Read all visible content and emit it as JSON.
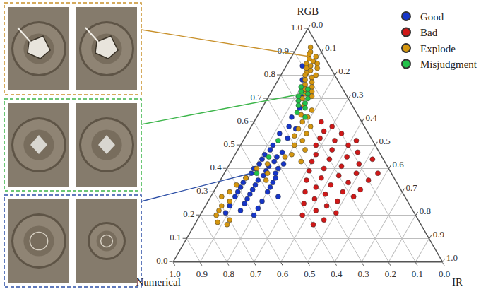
{
  "chart_data": {
    "type": "ternary",
    "grid": true,
    "legend": "top-right",
    "axes": [
      {
        "title": "RGB",
        "lim": [
          0,
          1
        ],
        "ticks": [
          {
            "value": 0,
            "label": "0.0"
          },
          0.1,
          0.2,
          0.3,
          0.4,
          0.5,
          0.6,
          0.7,
          0.8,
          0.9,
          {
            "value": 1,
            "label": "1.0"
          }
        ]
      },
      {
        "title": "Numerical",
        "lim": [
          0,
          1
        ],
        "ticks": [
          {
            "value": 0,
            "label": "0.0"
          },
          0.1,
          0.2,
          0.3,
          0.4,
          0.5,
          0.6,
          0.7,
          0.8,
          0.9,
          {
            "value": 1,
            "label": "1.0"
          }
        ]
      },
      {
        "title": "IR",
        "lim": [
          0,
          1
        ],
        "ticks": [
          {
            "value": 0,
            "label": "0.0"
          },
          0.1,
          0.2,
          0.3,
          0.4,
          0.5,
          0.6,
          0.7,
          0.8,
          0.9,
          {
            "value": 1,
            "label": "1.0"
          }
        ]
      }
    ],
    "series": [
      {
        "name": "Good",
        "color": "#1535c8",
        "values": [
          [
            0.5,
            0.38,
            0.12
          ],
          [
            0.48,
            0.4,
            0.12
          ],
          [
            0.47,
            0.36,
            0.17
          ],
          [
            0.46,
            0.43,
            0.11
          ],
          [
            0.45,
            0.39,
            0.16
          ],
          [
            0.44,
            0.45,
            0.11
          ],
          [
            0.43,
            0.41,
            0.16
          ],
          [
            0.42,
            0.47,
            0.11
          ],
          [
            0.42,
            0.38,
            0.2
          ],
          [
            0.41,
            0.44,
            0.15
          ],
          [
            0.4,
            0.5,
            0.1
          ],
          [
            0.4,
            0.41,
            0.19
          ],
          [
            0.39,
            0.46,
            0.15
          ],
          [
            0.38,
            0.52,
            0.1
          ],
          [
            0.38,
            0.43,
            0.19
          ],
          [
            0.37,
            0.48,
            0.15
          ],
          [
            0.36,
            0.55,
            0.09
          ],
          [
            0.36,
            0.44,
            0.2
          ],
          [
            0.35,
            0.51,
            0.14
          ],
          [
            0.34,
            0.57,
            0.09
          ],
          [
            0.34,
            0.46,
            0.2
          ],
          [
            0.33,
            0.53,
            0.14
          ],
          [
            0.32,
            0.59,
            0.09
          ],
          [
            0.32,
            0.48,
            0.2
          ],
          [
            0.31,
            0.55,
            0.14
          ],
          [
            0.3,
            0.61,
            0.09
          ],
          [
            0.3,
            0.5,
            0.2
          ],
          [
            0.29,
            0.57,
            0.14
          ],
          [
            0.28,
            0.63,
            0.09
          ],
          [
            0.28,
            0.47,
            0.25
          ],
          [
            0.27,
            0.59,
            0.14
          ],
          [
            0.26,
            0.54,
            0.2
          ],
          [
            0.25,
            0.61,
            0.14
          ],
          [
            0.24,
            0.67,
            0.09
          ],
          [
            0.23,
            0.57,
            0.2
          ],
          [
            0.22,
            0.64,
            0.14
          ],
          [
            0.21,
            0.7,
            0.09
          ],
          [
            0.2,
            0.6,
            0.2
          ],
          [
            0.55,
            0.33,
            0.12
          ],
          [
            0.58,
            0.28,
            0.14
          ],
          [
            0.62,
            0.25,
            0.13
          ],
          [
            0.66,
            0.2,
            0.14
          ],
          [
            0.72,
            0.16,
            0.12
          ],
          [
            0.78,
            0.13,
            0.09
          ],
          [
            0.84,
            0.1,
            0.06
          ],
          [
            0.53,
            0.31,
            0.16
          ],
          [
            0.57,
            0.26,
            0.17
          ]
        ]
      },
      {
        "name": "Bad",
        "color": "#d01818",
        "values": [
          [
            0.6,
            0.15,
            0.25
          ],
          [
            0.58,
            0.12,
            0.3
          ],
          [
            0.56,
            0.16,
            0.28
          ],
          [
            0.55,
            0.1,
            0.35
          ],
          [
            0.53,
            0.19,
            0.28
          ],
          [
            0.52,
            0.14,
            0.34
          ],
          [
            0.5,
            0.1,
            0.4
          ],
          [
            0.5,
            0.22,
            0.28
          ],
          [
            0.48,
            0.17,
            0.35
          ],
          [
            0.47,
            0.08,
            0.45
          ],
          [
            0.46,
            0.24,
            0.3
          ],
          [
            0.45,
            0.13,
            0.42
          ],
          [
            0.44,
            0.2,
            0.36
          ],
          [
            0.43,
            0.27,
            0.3
          ],
          [
            0.42,
            0.1,
            0.48
          ],
          [
            0.41,
            0.17,
            0.42
          ],
          [
            0.4,
            0.24,
            0.36
          ],
          [
            0.39,
            0.3,
            0.31
          ],
          [
            0.38,
            0.13,
            0.49
          ],
          [
            0.37,
            0.2,
            0.43
          ],
          [
            0.36,
            0.27,
            0.37
          ],
          [
            0.35,
            0.1,
            0.55
          ],
          [
            0.35,
            0.33,
            0.32
          ],
          [
            0.34,
            0.18,
            0.48
          ],
          [
            0.33,
            0.25,
            0.42
          ],
          [
            0.32,
            0.31,
            0.37
          ],
          [
            0.31,
            0.15,
            0.54
          ],
          [
            0.3,
            0.22,
            0.48
          ],
          [
            0.3,
            0.36,
            0.34
          ],
          [
            0.29,
            0.29,
            0.42
          ],
          [
            0.28,
            0.19,
            0.53
          ],
          [
            0.27,
            0.34,
            0.39
          ],
          [
            0.26,
            0.26,
            0.48
          ],
          [
            0.25,
            0.39,
            0.36
          ],
          [
            0.24,
            0.31,
            0.45
          ],
          [
            0.22,
            0.36,
            0.42
          ],
          [
            0.21,
            0.29,
            0.5
          ],
          [
            0.2,
            0.42,
            0.38
          ],
          [
            0.18,
            0.35,
            0.47
          ],
          [
            0.16,
            0.4,
            0.44
          ],
          [
            0.38,
            0.05,
            0.57
          ],
          [
            0.44,
            0.04,
            0.52
          ],
          [
            0.52,
            0.06,
            0.42
          ]
        ]
      },
      {
        "name": "Explode",
        "color": "#d4960f",
        "values": [
          [
            0.92,
            0.03,
            0.05
          ],
          [
            0.9,
            0.04,
            0.06
          ],
          [
            0.89,
            0.05,
            0.06
          ],
          [
            0.88,
            0.03,
            0.09
          ],
          [
            0.87,
            0.06,
            0.07
          ],
          [
            0.86,
            0.05,
            0.09
          ],
          [
            0.85,
            0.08,
            0.07
          ],
          [
            0.85,
            0.04,
            0.11
          ],
          [
            0.84,
            0.07,
            0.09
          ],
          [
            0.83,
            0.09,
            0.08
          ],
          [
            0.83,
            0.05,
            0.12
          ],
          [
            0.82,
            0.08,
            0.1
          ],
          [
            0.81,
            0.1,
            0.09
          ],
          [
            0.8,
            0.07,
            0.13
          ],
          [
            0.8,
            0.11,
            0.09
          ],
          [
            0.79,
            0.09,
            0.12
          ],
          [
            0.78,
            0.12,
            0.1
          ],
          [
            0.77,
            0.1,
            0.13
          ],
          [
            0.76,
            0.13,
            0.11
          ],
          [
            0.75,
            0.11,
            0.14
          ],
          [
            0.74,
            0.14,
            0.12
          ],
          [
            0.73,
            0.12,
            0.15
          ],
          [
            0.72,
            0.15,
            0.13
          ],
          [
            0.71,
            0.13,
            0.16
          ],
          [
            0.7,
            0.17,
            0.13
          ],
          [
            0.67,
            0.18,
            0.15
          ],
          [
            0.65,
            0.16,
            0.19
          ],
          [
            0.63,
            0.21,
            0.16
          ],
          [
            0.62,
            0.19,
            0.19
          ],
          [
            0.6,
            0.22,
            0.18
          ],
          [
            0.58,
            0.2,
            0.22
          ],
          [
            0.57,
            0.25,
            0.18
          ],
          [
            0.55,
            0.23,
            0.22
          ],
          [
            0.54,
            0.28,
            0.18
          ],
          [
            0.52,
            0.26,
            0.22
          ],
          [
            0.5,
            0.3,
            0.2
          ],
          [
            0.48,
            0.27,
            0.25
          ],
          [
            0.46,
            0.33,
            0.21
          ],
          [
            0.45,
            0.36,
            0.19
          ],
          [
            0.43,
            0.31,
            0.26
          ],
          [
            0.4,
            0.49,
            0.11
          ],
          [
            0.36,
            0.55,
            0.09
          ],
          [
            0.33,
            0.6,
            0.07
          ],
          [
            0.3,
            0.64,
            0.06
          ],
          [
            0.28,
            0.68,
            0.04
          ],
          [
            0.26,
            0.66,
            0.08
          ],
          [
            0.24,
            0.7,
            0.06
          ],
          [
            0.22,
            0.72,
            0.06
          ],
          [
            0.2,
            0.74,
            0.06
          ],
          [
            0.18,
            0.7,
            0.12
          ],
          [
            0.17,
            0.75,
            0.08
          ],
          [
            0.16,
            0.72,
            0.12
          ],
          [
            0.38,
            0.46,
            0.16
          ],
          [
            0.35,
            0.48,
            0.17
          ],
          [
            0.42,
            0.44,
            0.14
          ]
        ]
      },
      {
        "name": "Misjudgment",
        "color": "#22c24a",
        "values": [
          [
            0.75,
            0.15,
            0.1
          ],
          [
            0.74,
            0.13,
            0.13
          ],
          [
            0.73,
            0.16,
            0.11
          ],
          [
            0.72,
            0.14,
            0.14
          ],
          [
            0.71,
            0.18,
            0.11
          ],
          [
            0.7,
            0.15,
            0.15
          ],
          [
            0.69,
            0.19,
            0.12
          ],
          [
            0.68,
            0.17,
            0.15
          ],
          [
            0.67,
            0.2,
            0.13
          ],
          [
            0.66,
            0.18,
            0.16
          ],
          [
            0.64,
            0.22,
            0.14
          ],
          [
            0.62,
            0.2,
            0.18
          ],
          [
            0.52,
            0.35,
            0.13
          ],
          [
            0.45,
            0.42,
            0.13
          ],
          [
            0.38,
            0.5,
            0.12
          ]
        ]
      }
    ]
  }
}
